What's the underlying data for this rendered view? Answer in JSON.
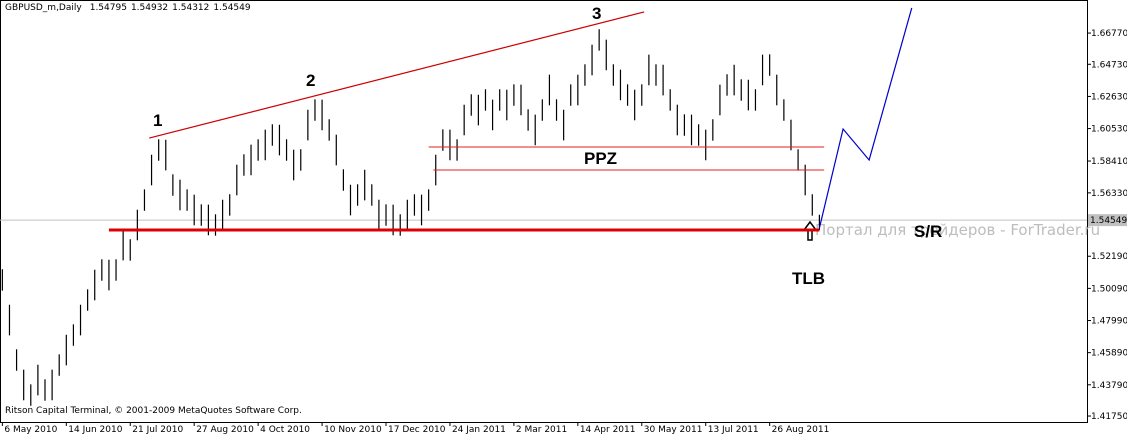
{
  "chart_data": {
    "type": "ohlc",
    "title": "GBPUSD_m,Daily",
    "quote": [
      1.54795,
      1.54932,
      1.54312,
      1.54549
    ],
    "footer": "Ritson Capital Terminal, © 2001-2009 MetaQuotes Software Corp.",
    "watermark": "Портал для трейдеров - ForTrader.ru",
    "color": "#000000",
    "x": [
      1,
      4,
      7,
      10,
      13,
      16,
      19,
      22,
      25,
      28,
      31,
      34,
      37,
      40,
      43,
      46,
      49,
      52,
      55,
      58,
      61,
      64,
      67,
      70,
      73,
      76,
      79,
      82,
      85,
      88,
      91,
      94,
      97,
      100,
      103,
      106,
      109,
      112,
      115,
      118,
      121,
      124,
      127,
      130,
      133,
      136,
      139,
      142,
      145,
      148,
      151,
      154,
      157,
      160,
      163,
      166,
      169,
      172,
      175,
      178,
      181,
      184,
      187,
      190,
      193,
      196,
      199,
      202,
      205,
      208,
      211,
      214,
      217,
      220,
      223,
      226,
      229,
      232,
      235,
      238,
      241,
      244,
      247,
      250,
      253,
      256,
      259,
      262,
      265,
      268,
      271,
      274,
      277,
      280,
      283,
      286,
      289,
      292,
      295,
      298,
      301,
      304,
      307,
      310,
      313,
      316,
      319,
      322,
      325,
      328,
      331,
      334,
      337,
      340,
      343,
      346
    ],
    "high": [
      1.5134,
      1.4902,
      1.4611,
      1.4478,
      1.4382,
      1.451,
      1.4415,
      1.4478,
      1.4578,
      1.4706,
      1.4774,
      1.4902,
      1.5003,
      1.5131,
      1.5199,
      1.5196,
      1.5199,
      1.5392,
      1.533,
      1.5523,
      1.5656,
      1.5882,
      1.5983,
      1.598,
      1.5754,
      1.5719,
      1.5656,
      1.5621,
      1.5558,
      1.5556,
      1.5493,
      1.5588,
      1.5624,
      1.5817,
      1.5885,
      1.5948,
      1.5983,
      1.6046,
      1.6081,
      1.6078,
      1.5983,
      1.5915,
      1.5918,
      1.6176,
      1.6244,
      1.6242,
      1.6114,
      1.6013,
      1.5787,
      1.5686,
      1.5689,
      1.5784,
      1.5689,
      1.5588,
      1.5558,
      1.5556,
      1.5493,
      1.5588,
      1.5624,
      1.5621,
      1.5656,
      1.5882,
      1.6048,
      1.6046,
      1.5983,
      1.6209,
      1.6277,
      1.6274,
      1.631,
      1.6242,
      1.631,
      1.6307,
      1.6342,
      1.634,
      1.6179,
      1.6144,
      1.6244,
      1.6405,
      1.6244,
      1.6176,
      1.6342,
      1.6405,
      1.6473,
      1.6601,
      1.6702,
      1.6634,
      1.6473,
      1.6438,
      1.6342,
      1.6307,
      1.6342,
      1.6536,
      1.6473,
      1.647,
      1.631,
      1.6209,
      1.6146,
      1.6144,
      1.6081,
      1.6046,
      1.6114,
      1.634,
      1.6408,
      1.647,
      1.6375,
      1.6372,
      1.631,
      1.6536,
      1.6538,
      1.6405,
      1.6244,
      1.6111,
      1.5918,
      1.5817,
      1.5624,
      1.549
    ],
    "low": [
      1.4994,
      1.4702,
      1.4471,
      1.4278,
      1.4242,
      1.431,
      1.4275,
      1.4278,
      1.4438,
      1.4506,
      1.4634,
      1.4702,
      1.4863,
      1.4931,
      1.5059,
      1.4996,
      1.5059,
      1.5192,
      1.519,
      1.5323,
      1.5516,
      1.5682,
      1.5843,
      1.578,
      1.5614,
      1.5519,
      1.5516,
      1.5421,
      1.5418,
      1.5356,
      1.5353,
      1.5388,
      1.5484,
      1.5617,
      1.5745,
      1.5748,
      1.5843,
      1.5846,
      1.5941,
      1.5878,
      1.5843,
      1.5715,
      1.5778,
      1.5976,
      1.6104,
      1.6042,
      1.5974,
      1.5813,
      1.5647,
      1.5486,
      1.5549,
      1.5584,
      1.5549,
      1.5388,
      1.5418,
      1.5356,
      1.5353,
      1.5388,
      1.5484,
      1.5421,
      1.5516,
      1.5682,
      1.5908,
      1.5846,
      1.5843,
      1.6009,
      1.6137,
      1.6074,
      1.617,
      1.6042,
      1.617,
      1.6107,
      1.6202,
      1.614,
      1.6039,
      1.5944,
      1.6104,
      1.6205,
      1.6104,
      1.5976,
      1.6202,
      1.6205,
      1.6333,
      1.6401,
      1.6562,
      1.6434,
      1.6333,
      1.6238,
      1.6202,
      1.6107,
      1.6202,
      1.6336,
      1.6333,
      1.627,
      1.617,
      1.6009,
      1.6006,
      1.5944,
      1.5941,
      1.5846,
      1.5974,
      1.614,
      1.6268,
      1.627,
      1.6235,
      1.6172,
      1.617,
      1.6336,
      1.6398,
      1.6205,
      1.6104,
      1.5911,
      1.5778,
      1.5617,
      1.5484,
      1.539
    ],
    "current_price": 1.54549,
    "xlim": [
      0,
      459
    ],
    "ylim": [
      1.4136,
      1.6893
    ],
    "xticks": [
      {
        "value": 1,
        "label": "6 May 2010"
      },
      {
        "value": 28,
        "label": "14 Jun 2010"
      },
      {
        "value": 55,
        "label": "21 Jul 2010"
      },
      {
        "value": 82,
        "label": "27 Aug 2010"
      },
      {
        "value": 109,
        "label": "4 Oct 2010"
      },
      {
        "value": 136,
        "label": "10 Nov 2010"
      },
      {
        "value": 163,
        "label": "17 Dec 2010"
      },
      {
        "value": 190,
        "label": "24 Jan 2011"
      },
      {
        "value": 217,
        "label": "2 Mar 2011"
      },
      {
        "value": 244,
        "label": "14 Apr 2011"
      },
      {
        "value": 271,
        "label": "30 May 2011"
      },
      {
        "value": 298,
        "label": "13 Jul 2011"
      },
      {
        "value": 325,
        "label": "26 Aug 2011"
      }
    ],
    "yticks": [
      {
        "value": 1.6677,
        "label": "1.66770"
      },
      {
        "value": 1.6473,
        "label": "1.64730"
      },
      {
        "value": 1.6263,
        "label": "1.62630"
      },
      {
        "value": 1.6053,
        "label": "1.60530"
      },
      {
        "value": 1.5841,
        "label": "1.58410"
      },
      {
        "value": 1.5633,
        "label": "1.56330"
      },
      {
        "value": 1.5219,
        "label": "1.52190"
      },
      {
        "value": 1.5009,
        "label": "1.50090"
      },
      {
        "value": 1.4799,
        "label": "1.47990"
      },
      {
        "value": 1.4589,
        "label": "1.45890"
      },
      {
        "value": 1.4379,
        "label": "1.43790"
      },
      {
        "value": 1.4175,
        "label": "1.41750"
      }
    ],
    "lines": [
      {
        "x": [
          63,
          272
        ],
        "y": [
          1.5991,
          1.6815
        ],
        "color": "#cc0000"
      },
      {
        "x": [
          346,
          356,
          367,
          385
        ],
        "y": [
          1.5403,
          1.605,
          1.5848,
          1.6841
        ],
        "color": "#0000cc"
      }
    ],
    "levels": [
      {
        "name": "PPZ",
        "value": 1.5933,
        "x": [
          181,
          348
        ],
        "color": "#e02020"
      },
      {
        "value": 1.5782,
        "x": [
          183,
          348
        ],
        "color": "#e02020"
      },
      {
        "name": "S/R",
        "value": 1.539,
        "x": [
          46,
          346
        ],
        "color": "#dd0000"
      }
    ],
    "annotations": [
      "1",
      "2",
      "3",
      "TLB"
    ]
  }
}
